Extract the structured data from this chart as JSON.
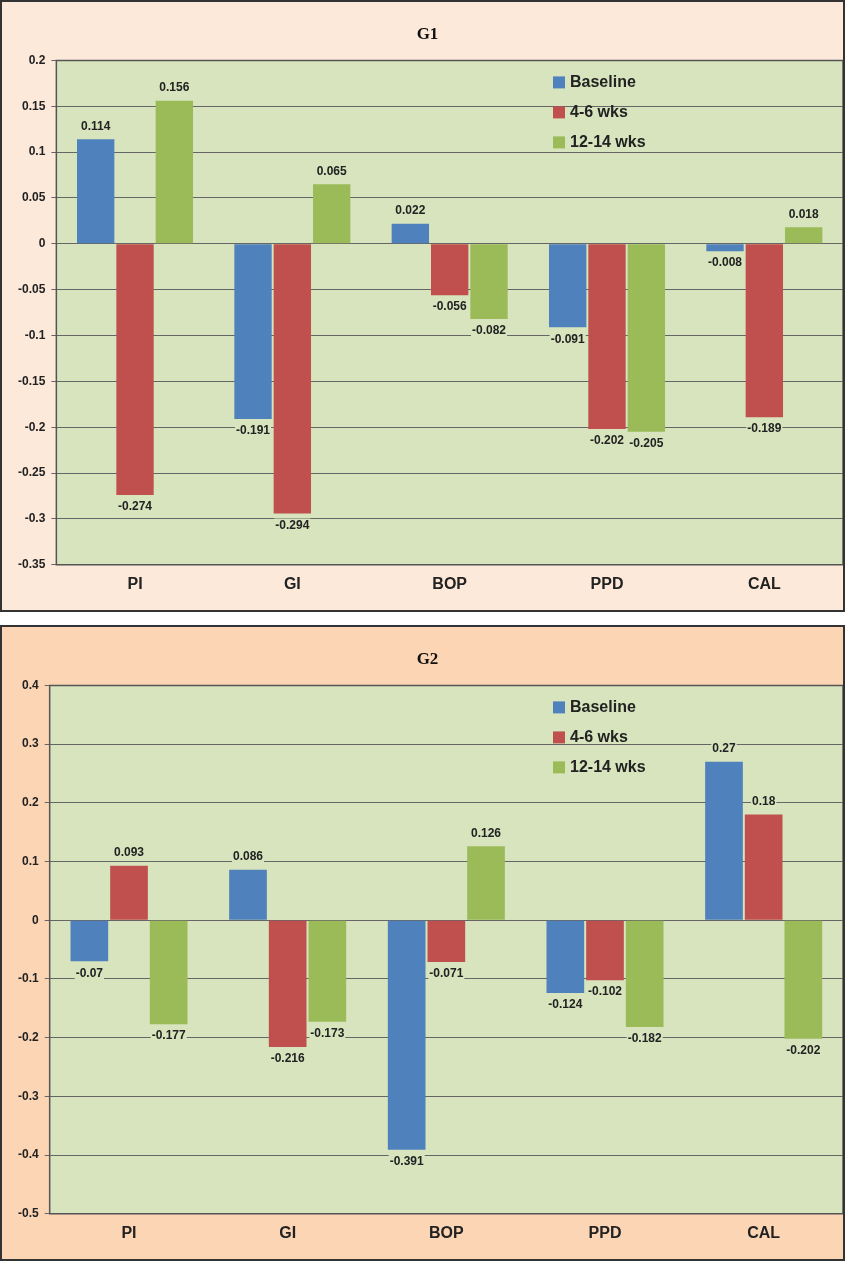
{
  "chart_data": [
    {
      "type": "bar",
      "title": "G1",
      "categories": [
        "PI",
        "GI",
        "BOP",
        "PPD",
        "CAL"
      ],
      "series": [
        {
          "name": "Baseline",
          "color": "#4f81bd",
          "values": [
            0.114,
            -0.191,
            0.022,
            -0.091,
            -0.008
          ]
        },
        {
          "name": "4-6 wks",
          "color": "#c0504d",
          "values": [
            -0.274,
            -0.294,
            -0.056,
            -0.202,
            -0.189
          ]
        },
        {
          "name": "12-14 wks",
          "color": "#9bbb59",
          "values": [
            0.156,
            0.065,
            -0.082,
            -0.205,
            0.018
          ]
        }
      ],
      "ylim": [
        -0.35,
        0.2
      ],
      "yticks": [
        -0.35,
        -0.3,
        -0.25,
        -0.2,
        -0.15,
        -0.1,
        -0.05,
        0,
        0.05,
        0.1,
        0.15,
        0.2
      ],
      "grid": "y",
      "legend": "top right",
      "data_labels": true
    },
    {
      "type": "bar",
      "title": "G2",
      "categories": [
        "PI",
        "GI",
        "BOP",
        "PPD",
        "CAL"
      ],
      "series": [
        {
          "name": "Baseline",
          "color": "#4f81bd",
          "values": [
            -0.07,
            0.086,
            -0.391,
            -0.124,
            0.27
          ]
        },
        {
          "name": "4-6 wks",
          "color": "#c0504d",
          "values": [
            0.093,
            -0.216,
            -0.071,
            -0.102,
            0.18
          ]
        },
        {
          "name": "12-14 wks",
          "color": "#9bbb59",
          "values": [
            -0.177,
            -0.173,
            0.126,
            -0.182,
            -0.202
          ]
        }
      ],
      "ylim": [
        -0.5,
        0.4
      ],
      "yticks": [
        -0.5,
        -0.4,
        -0.3,
        -0.2,
        -0.1,
        0,
        0.1,
        0.2,
        0.3,
        0.4
      ],
      "grid": "y",
      "legend": "top right",
      "data_labels": true
    }
  ]
}
